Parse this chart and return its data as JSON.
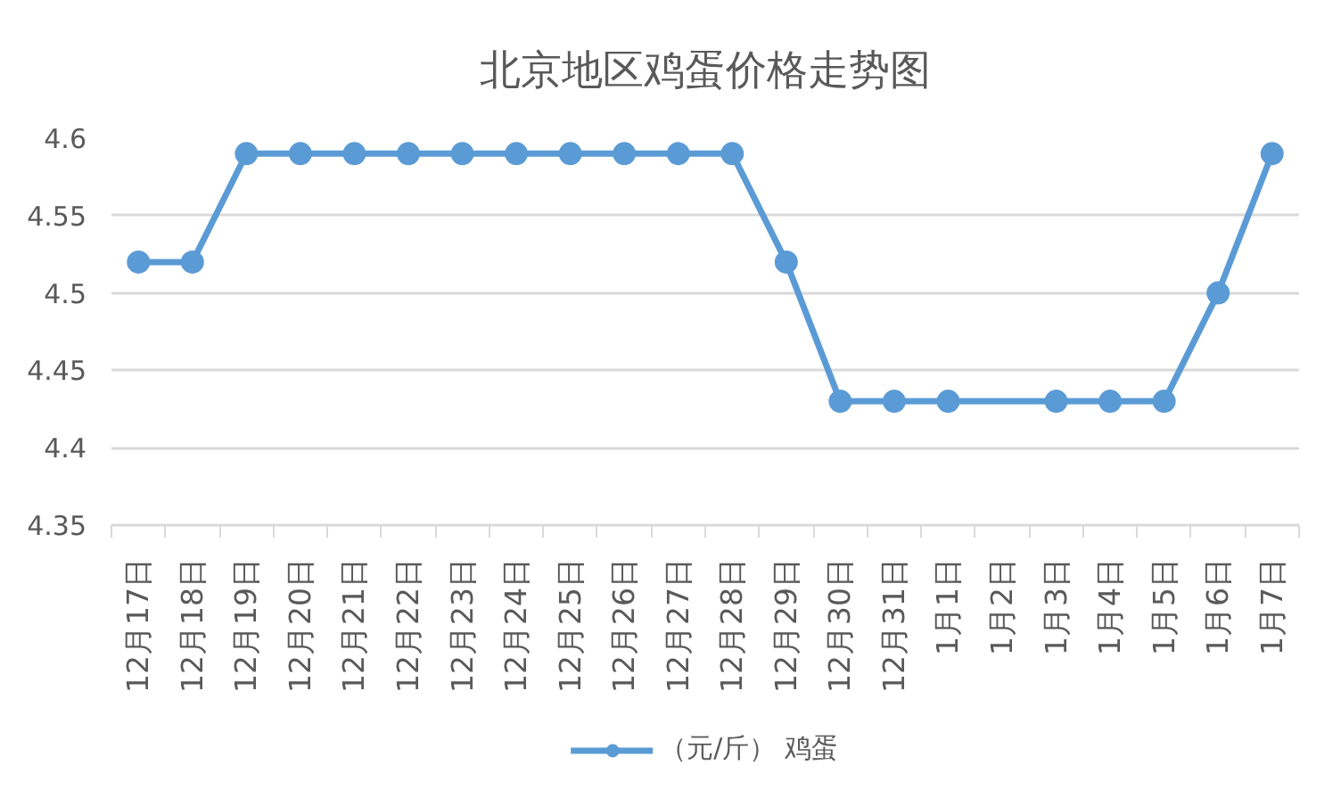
{
  "chart_data": {
    "type": "line",
    "title": "北京地区鸡蛋价格走势图",
    "categories": [
      "12月17日",
      "12月18日",
      "12月19日",
      "12月20日",
      "12月21日",
      "12月22日",
      "12月23日",
      "12月24日",
      "12月25日",
      "12月26日",
      "12月27日",
      "12月28日",
      "12月29日",
      "12月30日",
      "12月31日",
      "1月1日",
      "1月2日",
      "1月3日",
      "1月4日",
      "1月5日",
      "1月6日",
      "1月7日"
    ],
    "series": [
      {
        "name": "（元/斤） 鸡蛋",
        "color": "#5b9bd5",
        "values": [
          4.52,
          4.52,
          4.59,
          4.59,
          4.59,
          4.59,
          4.59,
          4.59,
          4.59,
          4.59,
          4.59,
          4.59,
          4.52,
          4.43,
          4.43,
          4.43,
          null,
          4.43,
          4.43,
          4.43,
          4.5,
          4.59
        ]
      }
    ],
    "ylim": [
      4.35,
      4.6
    ],
    "yticks": [
      4.35,
      4.4,
      4.45,
      4.5,
      4.55,
      4.6
    ],
    "grid": "y",
    "legend": "bottom",
    "marker": "circle",
    "line_style": "solid"
  }
}
